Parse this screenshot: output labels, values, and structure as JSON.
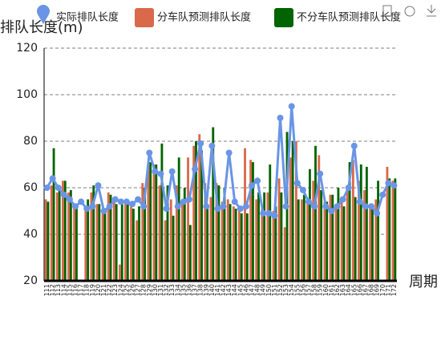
{
  "chart_data": {
    "type": "bar-line",
    "y_axis_label": "排队长度(m)",
    "x_axis_label": "周期",
    "categories": [
      "111",
      "112",
      "113",
      "114",
      "115",
      "116",
      "117",
      "118",
      "119",
      "120",
      "121",
      "122",
      "123",
      "124",
      "125",
      "126",
      "127",
      "128",
      "129",
      "130",
      "131",
      "132",
      "133",
      "134",
      "135",
      "136",
      "137",
      "138",
      "139",
      "140",
      "141",
      "142",
      "143",
      "144",
      "145",
      "146",
      "147",
      "148",
      "149",
      "150",
      "151",
      "152",
      "153",
      "154",
      "155",
      "156",
      "157",
      "158",
      "159",
      "160",
      "161",
      "162",
      "163",
      "164",
      "165",
      "166",
      "167",
      "168",
      "169",
      "170",
      "171",
      "172"
    ],
    "series": [
      {
        "name": "实际排队长度",
        "kind": "line",
        "color": "#6a95e6",
        "values": [
          60,
          64,
          60,
          57,
          55,
          52,
          54,
          51,
          52,
          61,
          50,
          52,
          55,
          54,
          54,
          53,
          55,
          52,
          75,
          67,
          66,
          51,
          67,
          52,
          54,
          55,
          68,
          79,
          52,
          78,
          51,
          52,
          75,
          54,
          51,
          52,
          61,
          63,
          49,
          49,
          48,
          90,
          52,
          95,
          62,
          59,
          54,
          52,
          66,
          52,
          50,
          52,
          55,
          60,
          78,
          54,
          52,
          52,
          49,
          57,
          62,
          61
        ]
      },
      {
        "name": "分车队预测排队长度",
        "kind": "bar",
        "color": "#d9694a",
        "values": [
          55,
          61,
          58,
          63,
          58,
          52,
          null,
          52,
          58,
          53,
          50,
          58,
          54,
          27,
          53,
          52,
          46,
          62,
          70,
          70,
          61,
          46,
          55,
          61,
          55,
          73,
          78,
          83,
          62,
          56,
          62,
          54,
          55,
          52,
          50,
          77,
          72,
          55,
          51,
          58,
          50,
          64,
          43,
          73,
          80,
          55,
          55,
          63,
          74,
          54,
          57,
          52,
          55,
          60,
          72,
          63,
          59,
          52,
          55,
          null,
          69,
          63
        ]
      },
      {
        "name": "不分车队预测排队长度",
        "kind": "bar",
        "color": "#006400",
        "values": [
          54,
          77,
          60,
          63,
          59,
          53,
          null,
          55,
          61,
          53,
          51,
          57,
          53,
          53,
          53,
          51,
          52,
          60,
          71,
          70,
          79,
          61,
          48,
          73,
          60,
          44,
          80,
          76,
          53,
          86,
          61,
          60,
          53,
          51,
          49,
          49,
          71,
          58,
          58,
          70,
          52,
          58,
          84,
          80,
          55,
          57,
          68,
          78,
          59,
          54,
          57,
          60,
          52,
          71,
          56,
          70,
          69,
          51,
          63,
          null,
          64,
          64
        ]
      }
    ],
    "ylim": [
      20,
      120
    ],
    "yticks": [
      20,
      40,
      60,
      80,
      100,
      120
    ],
    "grid": true
  }
}
